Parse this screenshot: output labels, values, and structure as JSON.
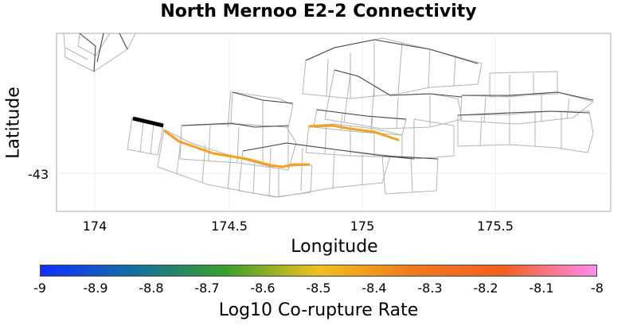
{
  "title": "North Mernoo E2-2 Connectivity",
  "x_axis": {
    "label": "Longitude",
    "ticks": [
      "174",
      "174.5",
      "175",
      "175.5"
    ]
  },
  "y_axis": {
    "label": "Latitude",
    "ticks": [
      "-43"
    ]
  },
  "colorbar": {
    "label": "Log10 Co-rupture Rate",
    "ticks": [
      "-9",
      "-8.9",
      "-8.8",
      "-8.7",
      "-8.6",
      "-8.5",
      "-8.4",
      "-8.3",
      "-8.2",
      "-8.1",
      "-8"
    ],
    "colors": [
      "#1030ff",
      "#136fa0",
      "#3aa028",
      "#f0c020",
      "#f07a20",
      "#f06020",
      "#ff8cf0"
    ]
  },
  "colors": {
    "source_fault": "#000000",
    "corupture_fault": "#f5a020",
    "fault_trace": "#444444",
    "fault_outline": "#b4b4b4",
    "grid": "#ececec"
  },
  "legend": "none"
}
